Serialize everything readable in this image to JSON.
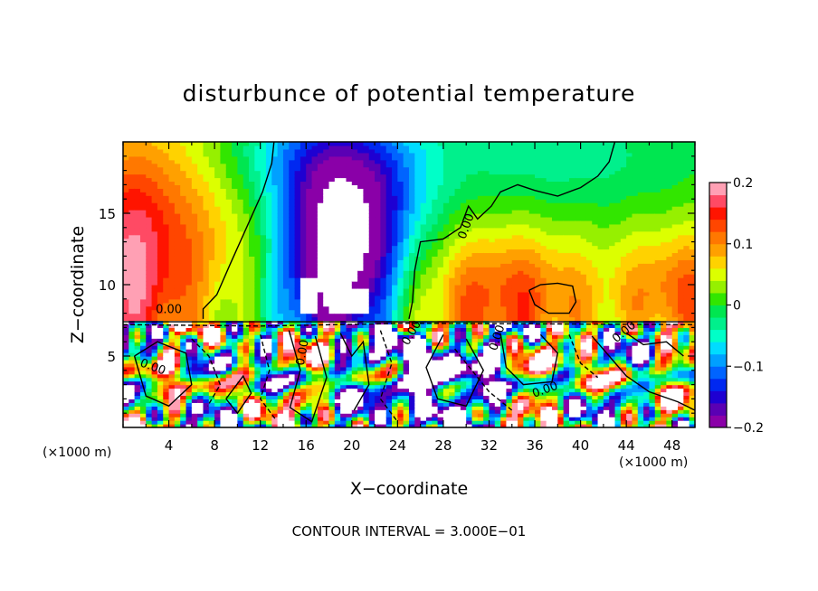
{
  "chart_data": {
    "type": "heatmap",
    "title": "disturbunce of potential temperature",
    "xlabel": "X−coordinate",
    "ylabel": "Z−coordinate",
    "x_unit": "(×1000 m)",
    "y_unit": "(×1000 m)",
    "xlim": [
      0,
      50
    ],
    "ylim": [
      0,
      20
    ],
    "x_ticks": [
      4,
      8,
      12,
      16,
      20,
      24,
      28,
      32,
      36,
      40,
      44,
      48
    ],
    "y_ticks": [
      5,
      10,
      15
    ],
    "colorbar": {
      "range": [
        -0.2,
        0.2
      ],
      "tick_values": [
        0.2,
        0.1,
        0,
        -0.1,
        -0.2
      ],
      "tick_labels": [
        "0.2",
        "0.1",
        "0",
        "−0.1",
        "−0.2"
      ],
      "colors": [
        "#8a00a8",
        "#5a00b4",
        "#1e00d2",
        "#0028f0",
        "#0064ff",
        "#00a0ff",
        "#00dcff",
        "#00ffc8",
        "#00f08c",
        "#00e650",
        "#32e600",
        "#96f000",
        "#dcff00",
        "#ffd200",
        "#ffa000",
        "#ff7800",
        "#ff4600",
        "#ff1400",
        "#ff4a64",
        "#ffa0b4"
      ]
    },
    "contour_labels": [
      "0.00"
    ],
    "contour_interval_text": "CONTOUR INTERVAL = 3.000E−01",
    "regions": [
      {
        "x": [
          0,
          6
        ],
        "z": [
          7.5,
          20
        ],
        "value": 0.12
      },
      {
        "x": [
          0,
          4
        ],
        "z": [
          7.5,
          11
        ],
        "value": 0.17
      },
      {
        "x": [
          6,
          12
        ],
        "z": [
          9,
          20
        ],
        "value": 0.06
      },
      {
        "x": [
          12,
          18
        ],
        "z": [
          9,
          20
        ],
        "value": -0.02
      },
      {
        "x": [
          15,
          22
        ],
        "z": [
          7.5,
          17
        ],
        "value": -0.14
      },
      {
        "x": [
          17,
          21
        ],
        "z": [
          8,
          13
        ],
        "value": -0.19
      },
      {
        "x": [
          22,
          26
        ],
        "z": [
          8,
          20
        ],
        "value": -0.06
      },
      {
        "x": [
          26,
          50
        ],
        "z": [
          14,
          20
        ],
        "value": 0.01
      },
      {
        "x": [
          26,
          44
        ],
        "z": [
          7.5,
          12
        ],
        "value": 0.07
      },
      {
        "x": [
          44,
          50
        ],
        "z": [
          7.5,
          12
        ],
        "value": 0.13
      },
      {
        "x": [
          0,
          50
        ],
        "z": [
          0,
          7.5
        ],
        "value": "mixed"
      }
    ]
  }
}
